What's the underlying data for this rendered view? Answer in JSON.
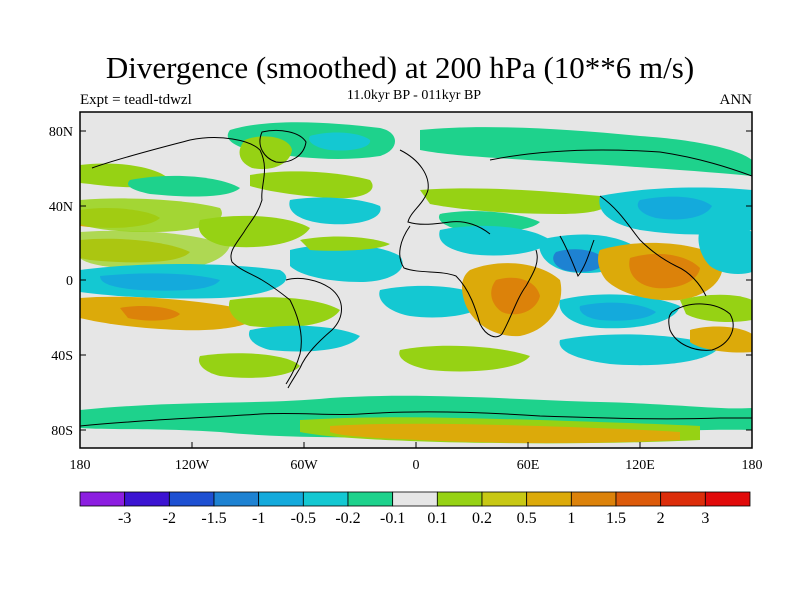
{
  "header": {
    "title": "Divergence (smoothed) at 200 hPa (10**6 m/s)",
    "subtitle": "11.0kyr BP - 011kyr BP",
    "experiment": "Expt = teadl-tdwzl",
    "season": "ANN"
  },
  "axes": {
    "y_ticks": [
      "80N",
      "40N",
      "0",
      "40S",
      "80S"
    ],
    "x_ticks": [
      "180",
      "120W",
      "60W",
      "0",
      "60E",
      "120E",
      "180"
    ]
  },
  "colorbar": {
    "colors": [
      "#8c1ee0",
      "#3c14d2",
      "#1e50d2",
      "#1e82d2",
      "#14aadc",
      "#14c8d2",
      "#1ed28c",
      "#e6e6e6",
      "#96d214",
      "#c8c814",
      "#dcaa0a",
      "#dc820a",
      "#dc5a0a",
      "#dc2d0a",
      "#e10a0a"
    ],
    "labels": [
      "-3",
      "-2",
      "-1.5",
      "-1",
      "-0.5",
      "-0.2",
      "-0.1",
      "0.1",
      "0.2",
      "0.5",
      "1",
      "1.5",
      "2",
      "3"
    ]
  },
  "map": {
    "ocean_background": "#e6e6e6",
    "coastline_color": "#000000"
  }
}
